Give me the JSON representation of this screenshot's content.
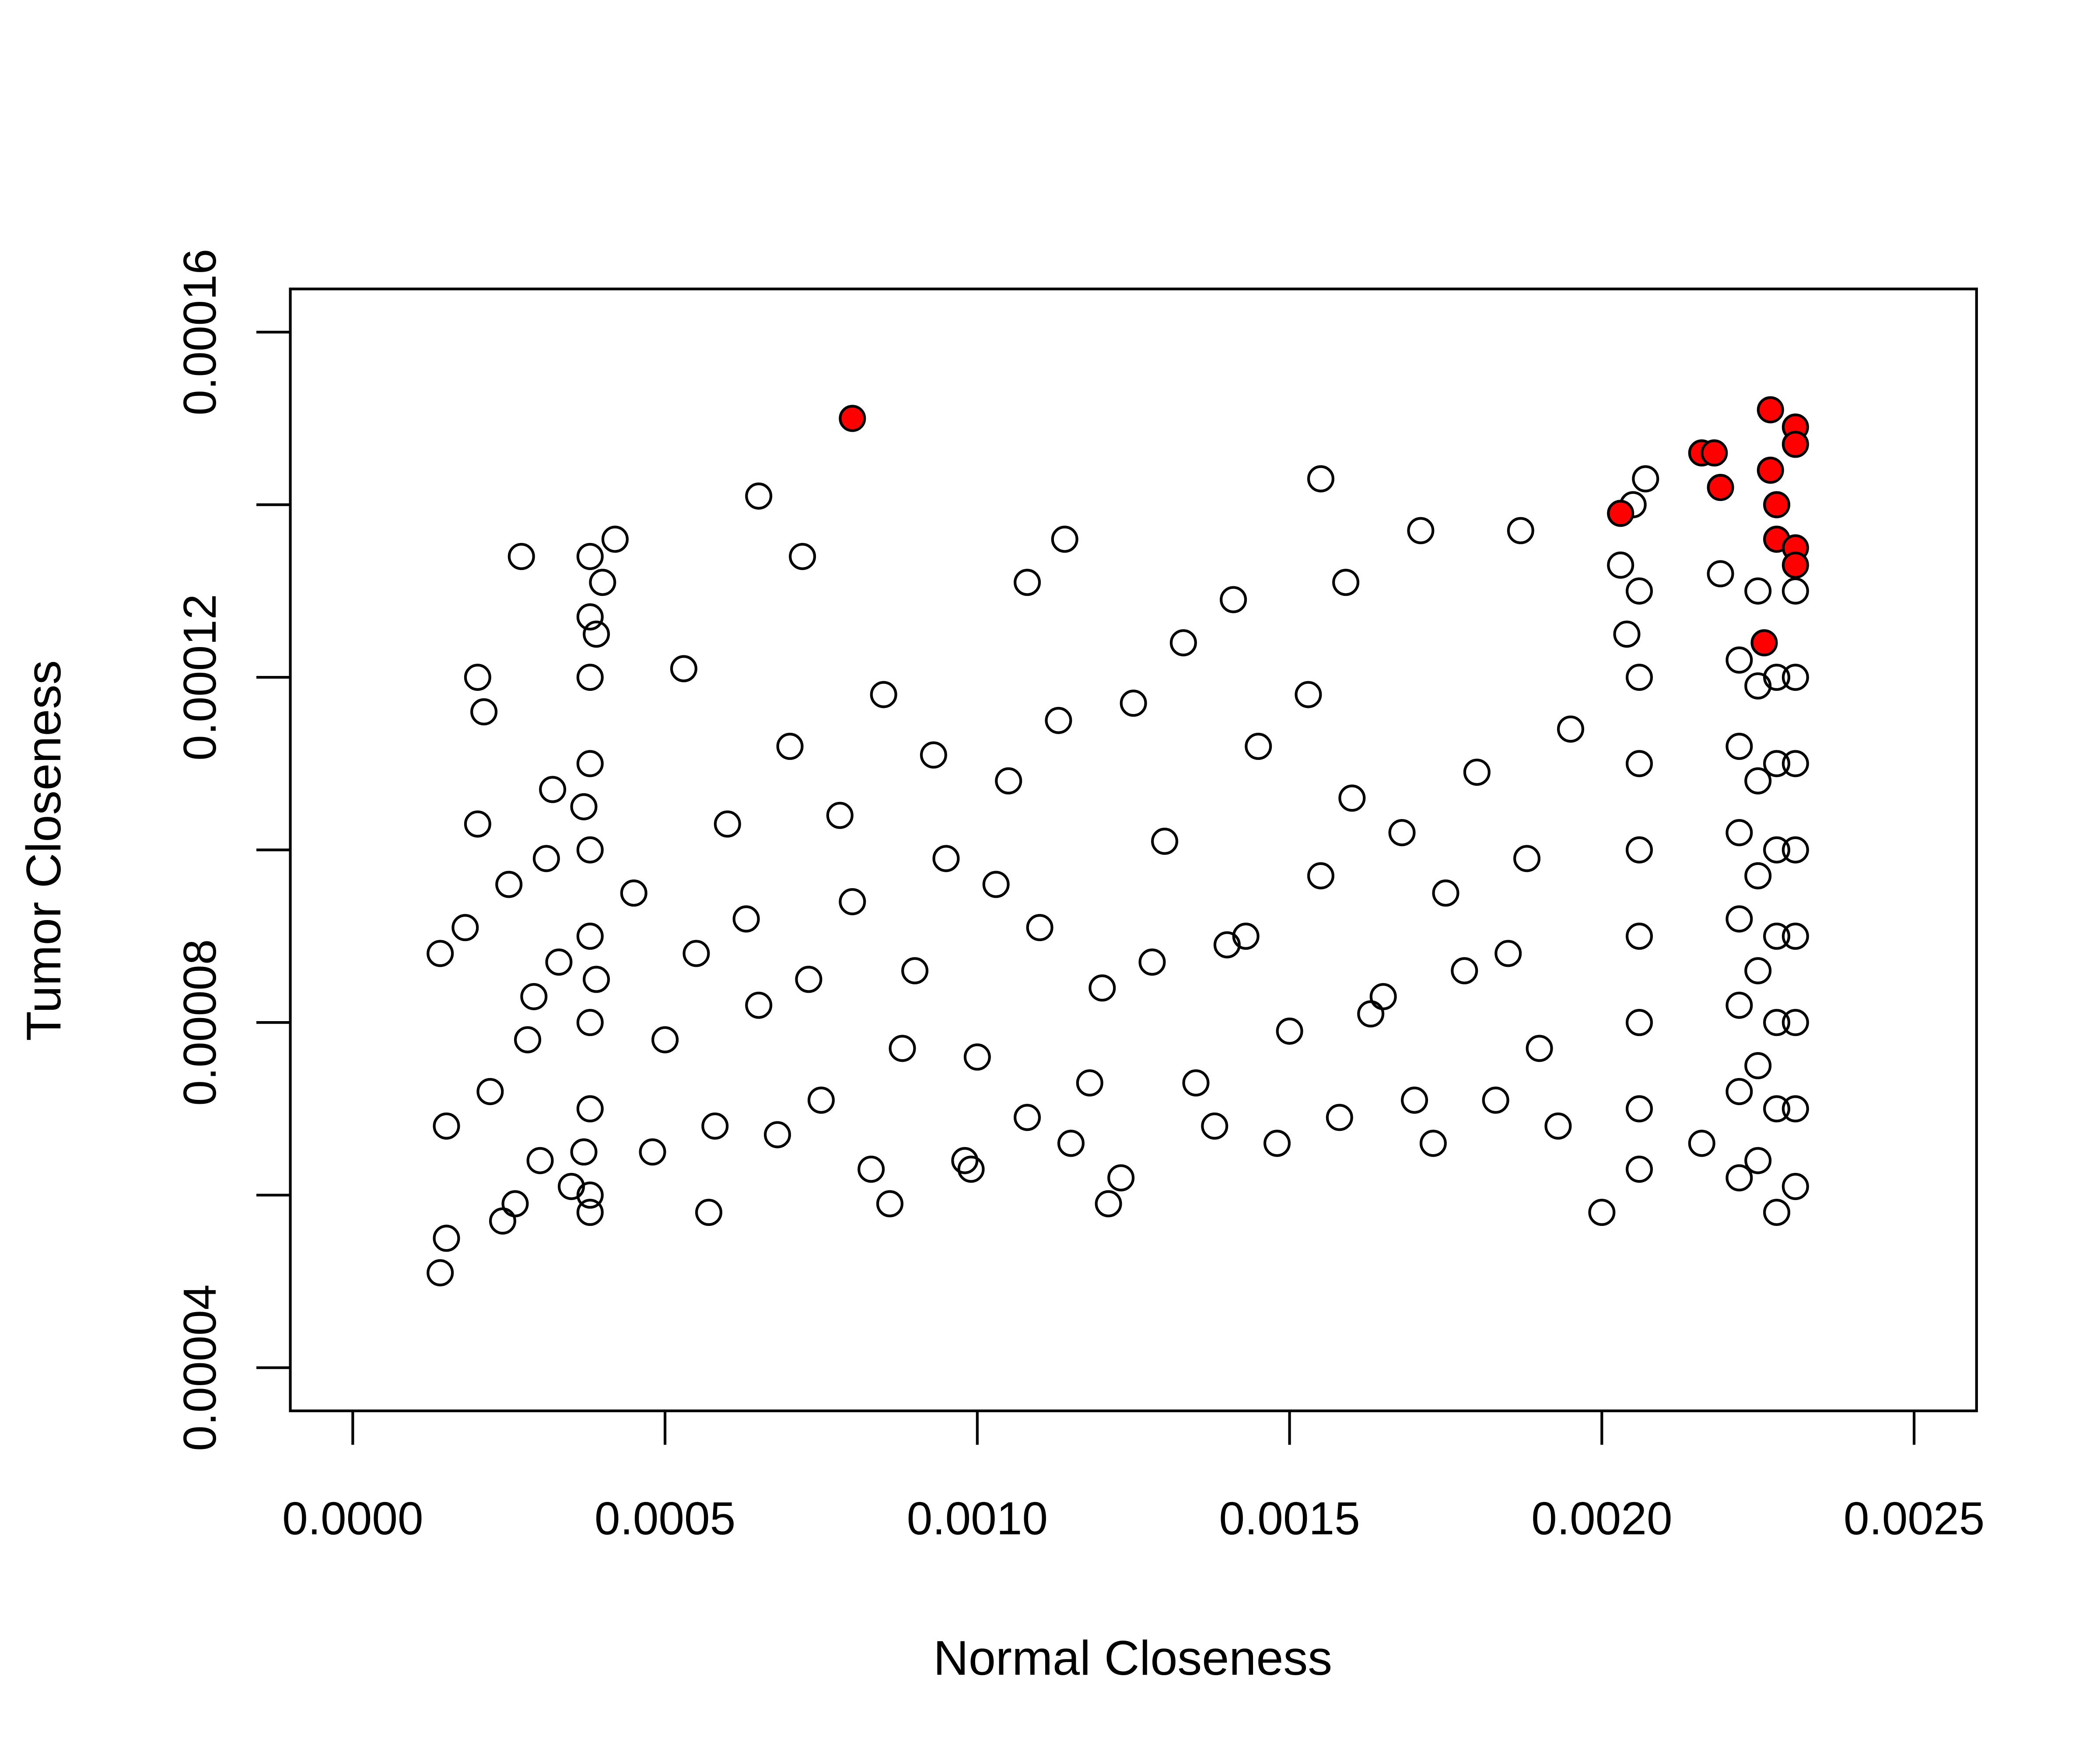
{
  "chart_data": {
    "type": "scatter",
    "x_label": "Normal Closeness",
    "y_label": "Tumor Closeness",
    "xlim": [
      -0.0001,
      0.0026
    ],
    "ylim": [
      3.5e-05,
      0.000165
    ],
    "xticks": [
      {
        "value": 0,
        "label": "0.0000"
      },
      {
        "value": 0.0005,
        "label": "0.0005"
      },
      {
        "value": 0.001,
        "label": "0.0010"
      },
      {
        "value": 0.0015,
        "label": "0.0015"
      },
      {
        "value": 0.002,
        "label": "0.0020"
      },
      {
        "value": 0.0025,
        "label": "0.0025"
      }
    ],
    "yticks": [
      {
        "value": 4e-05,
        "label": "0.00004"
      },
      {
        "value": 6e-05,
        "label": null
      },
      {
        "value": 8e-05,
        "label": "0.00008"
      },
      {
        "value": 0.0001,
        "label": null
      },
      {
        "value": 0.00012,
        "label": "0.00012"
      },
      {
        "value": 0.00014,
        "label": null
      },
      {
        "value": 0.00016,
        "label": "0.00016"
      }
    ],
    "series": [
      {
        "color": "#000000",
        "fill": "none",
        "x": [
          0.00014,
          0.00015,
          0.00015,
          0.00018,
          0.0002,
          0.00021,
          0.00022,
          0.00024,
          0.00026,
          0.00027,
          0.00028,
          0.0003,
          0.00031,
          0.00033,
          0.00035,
          0.00014,
          0.0002,
          0.00025,
          0.00029,
          0.00032,
          0.00038,
          0.00038,
          0.00038,
          0.00038,
          0.00038,
          0.00038,
          0.00038,
          0.00038,
          0.00038,
          0.00037,
          0.00039,
          0.00037,
          0.00039,
          0.00038,
          0.00045,
          0.0005,
          0.00055,
          0.0006,
          0.00065,
          0.0007,
          0.00075,
          0.0008,
          0.00085,
          0.0009,
          0.00095,
          0.001,
          0.00105,
          0.0011,
          0.00115,
          0.0012,
          0.00125,
          0.0013,
          0.00135,
          0.0014,
          0.00145,
          0.0015,
          0.00155,
          0.0016,
          0.00165,
          0.0017,
          0.00175,
          0.0018,
          0.00185,
          0.0019,
          0.00195,
          0.00048,
          0.00053,
          0.00058,
          0.00063,
          0.00068,
          0.00073,
          0.00078,
          0.00083,
          0.00088,
          0.00093,
          0.00098,
          0.00103,
          0.00108,
          0.00113,
          0.00118,
          0.00123,
          0.00128,
          0.00133,
          0.00138,
          0.00143,
          0.00148,
          0.00153,
          0.00158,
          0.00163,
          0.00168,
          0.00173,
          0.00178,
          0.00183,
          0.00188,
          0.00193,
          0.00042,
          0.00057,
          0.00065,
          0.00086,
          0.00099,
          0.00114,
          0.00121,
          0.00155,
          0.00171,
          0.00187,
          0.0004,
          0.00072,
          0.00108,
          0.00141,
          0.00159,
          0.002,
          0.00206,
          0.00206,
          0.00206,
          0.00206,
          0.00206,
          0.00206,
          0.00206,
          0.00206,
          0.00205,
          0.00207,
          0.00203,
          0.00204,
          0.00222,
          0.00222,
          0.00222,
          0.00222,
          0.00222,
          0.00222,
          0.00222,
          0.00225,
          0.00225,
          0.00225,
          0.00225,
          0.00225,
          0.00225,
          0.00225,
          0.00228,
          0.00228,
          0.00228,
          0.00228,
          0.00228,
          0.00228,
          0.00228,
          0.00231,
          0.00231,
          0.00231,
          0.00231,
          0.00231,
          0.00231,
          0.00231,
          0.00231,
          0.00216,
          0.00219
        ],
        "y": [
          5.1e-05,
          5.5e-05,
          6.8e-05,
          9.1e-05,
          0.000103,
          0.000116,
          7.2e-05,
          5.7e-05,
          5.9e-05,
          0.000134,
          7.8e-05,
          6.4e-05,
          9.9e-05,
          8.7e-05,
          6.1e-05,
          8.8e-05,
          0.00012,
          9.6e-05,
          8.3e-05,
          0.000107,
          6e-05,
          7e-05,
          8e-05,
          9e-05,
          0.0001,
          0.00011,
          0.00012,
          0.000127,
          0.000134,
          6.5e-05,
          8.5e-05,
          0.000105,
          0.000125,
          5.8e-05,
          9.5e-05,
          7.8e-05,
          8.8e-05,
          0.000103,
          8.2e-05,
          0.000112,
          7.1e-05,
          9.4e-05,
          0.000118,
          8.6e-05,
          9.9e-05,
          7.6e-05,
          0.000108,
          9.1e-05,
          6.6e-05,
          8.4e-05,
          0.000117,
          0.000101,
          7.3e-05,
          8.9e-05,
          0.000112,
          7.9e-05,
          9.7e-05,
          0.000106,
          8.3e-05,
          7.1e-05,
          9.5e-05,
          0.000109,
          8.8e-05,
          7.7e-05,
          0.000114,
          6.5e-05,
          0.000121,
          6.8e-05,
          9.2e-05,
          6.7e-05,
          8.5e-05,
          0.000104,
          6.3e-05,
          7.7e-05,
          0.000111,
          6.4e-05,
          9.6e-05,
          6.9e-05,
          0.000115,
          7.3e-05,
          6.2e-05,
          8.7e-05,
          0.000124,
          6.8e-05,
          9e-05,
          6.6e-05,
          0.000118,
          6.9e-05,
          8.1e-05,
          0.000102,
          6.6e-05,
          8.6e-05,
          7.1e-05,
          9.9e-05,
          6.8e-05,
          0.000136,
          5.8e-05,
          0.000141,
          5.9e-05,
          6.3e-05,
          0.000136,
          5.9e-05,
          0.000143,
          0.000137,
          0.000137,
          0.000131,
          0.000134,
          0.000131,
          0.000129,
          0.000131,
          5.8e-05,
          6.3e-05,
          7e-05,
          8e-05,
          9e-05,
          0.0001,
          0.00011,
          0.00012,
          0.00013,
          0.00014,
          0.000143,
          0.000133,
          0.000125,
          6.2e-05,
          7.2e-05,
          8.2e-05,
          9.2e-05,
          0.000102,
          0.000112,
          0.000122,
          6.4e-05,
          7.5e-05,
          8.6e-05,
          9.7e-05,
          0.000108,
          0.000119,
          0.00013,
          5.8e-05,
          7e-05,
          8e-05,
          9e-05,
          0.0001,
          0.00011,
          0.00012,
          6.1e-05,
          7e-05,
          8e-05,
          9e-05,
          0.0001,
          0.00011,
          0.00012,
          0.00013,
          6.6e-05,
          0.000132
        ]
      },
      {
        "color": "#000000",
        "fill": "#ff0000",
        "x": [
          0.0008,
          0.00203,
          0.00216,
          0.00218,
          0.00219,
          0.00227,
          0.00231,
          0.00227,
          0.00228,
          0.00228,
          0.00231,
          0.00231,
          0.00226,
          0.00231
        ],
        "y": [
          0.00015,
          0.000139,
          0.000146,
          0.000146,
          0.000142,
          0.000151,
          0.000149,
          0.000144,
          0.00014,
          0.000136,
          0.000135,
          0.000133,
          0.000124,
          0.000147
        ]
      }
    ]
  }
}
